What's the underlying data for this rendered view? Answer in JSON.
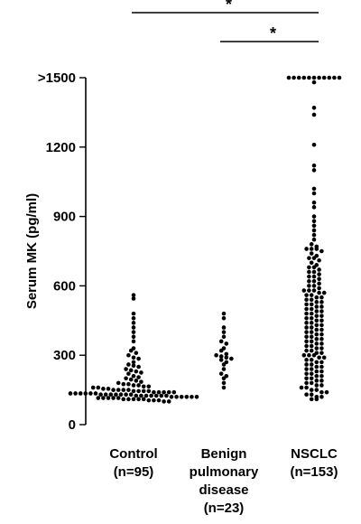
{
  "chart_data": {
    "type": "scatter",
    "style": "dot-plot",
    "title": "",
    "ylabel": "Serum MK (pg/ml)",
    "ylim": [
      0,
      1500
    ],
    "yticks": [
      0,
      300,
      600,
      900,
      1200,
      1500
    ],
    "ytick_labels": [
      "0",
      "300",
      "600",
      "900",
      "1200",
      ">1500"
    ],
    "grid": false,
    "categories": [
      {
        "label_lines": [
          "Control",
          "(n=95)"
        ]
      },
      {
        "label_lines": [
          "Benign",
          "pulmonary",
          "disease",
          "(n=23)"
        ]
      },
      {
        "label_lines": [
          "NSCLC",
          "(n=153)"
        ]
      }
    ],
    "series": [
      {
        "values": [
          560,
          545,
          480,
          460,
          440,
          420,
          400,
          380,
          360,
          330,
          320,
          310,
          300,
          290,
          285,
          270,
          260,
          255,
          250,
          240,
          235,
          230,
          225,
          220,
          210,
          205,
          200,
          195,
          190,
          185,
          180,
          175,
          175,
          170,
          170,
          165,
          165,
          160,
          160,
          155,
          155,
          150,
          150,
          150,
          150,
          145,
          145,
          145,
          145,
          140,
          140,
          140,
          140,
          140,
          135,
          135,
          135,
          135,
          135,
          135,
          130,
          130,
          130,
          130,
          130,
          130,
          130,
          125,
          125,
          125,
          125,
          125,
          125,
          125,
          120,
          120,
          120,
          120,
          120,
          120,
          115,
          115,
          115,
          115,
          115,
          110,
          110,
          110,
          110,
          110,
          105,
          105,
          105,
          100,
          100
        ]
      },
      {
        "values": [
          480,
          460,
          420,
          400,
          380,
          360,
          350,
          330,
          320,
          305,
          300,
          295,
          290,
          285,
          280,
          270,
          260,
          240,
          220,
          210,
          200,
          180,
          160
        ]
      },
      {
        "values": [
          1500,
          1500,
          1500,
          1500,
          1500,
          1500,
          1500,
          1500,
          1500,
          1500,
          1500,
          1480,
          1370,
          1340,
          1210,
          1120,
          1100,
          1020,
          1000,
          960,
          940,
          900,
          880,
          860,
          840,
          820,
          800,
          780,
          770,
          760,
          760,
          760,
          750,
          740,
          730,
          720,
          720,
          710,
          700,
          690,
          680,
          680,
          670,
          660,
          660,
          650,
          640,
          640,
          630,
          620,
          620,
          610,
          600,
          600,
          590,
          580,
          580,
          580,
          570,
          570,
          560,
          560,
          550,
          550,
          540,
          540,
          530,
          530,
          520,
          520,
          510,
          510,
          500,
          500,
          490,
          490,
          480,
          480,
          470,
          470,
          460,
          460,
          450,
          450,
          440,
          440,
          430,
          430,
          420,
          420,
          410,
          410,
          400,
          400,
          390,
          390,
          380,
          380,
          370,
          370,
          360,
          360,
          350,
          350,
          340,
          340,
          330,
          330,
          320,
          320,
          310,
          310,
          300,
          300,
          300,
          290,
          290,
          280,
          280,
          270,
          270,
          260,
          260,
          250,
          250,
          240,
          240,
          230,
          230,
          220,
          220,
          210,
          210,
          200,
          200,
          190,
          190,
          180,
          180,
          170,
          170,
          160,
          160,
          150,
          150,
          140,
          140,
          130,
          130,
          120,
          120,
          110,
          110
        ]
      }
    ],
    "significance": [
      {
        "from": 0,
        "to": 2,
        "label": "*"
      },
      {
        "from": 1,
        "to": 2,
        "label": "*"
      }
    ]
  }
}
